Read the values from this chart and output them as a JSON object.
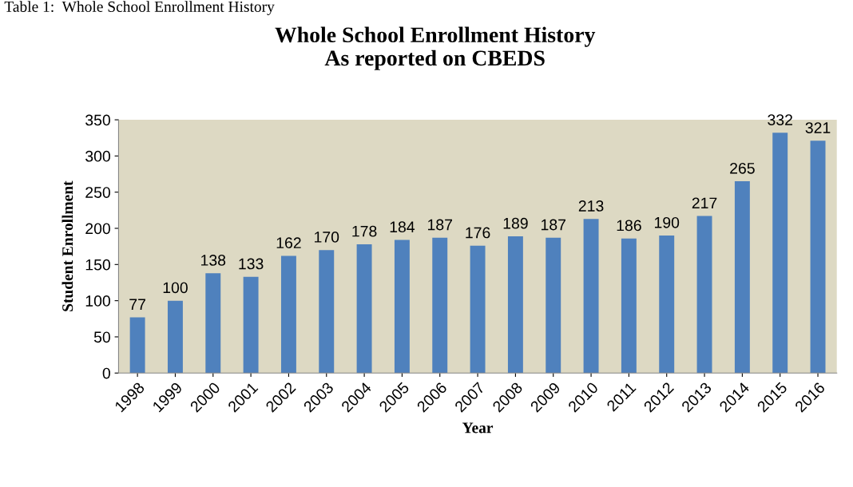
{
  "chart_data": {
    "type": "bar",
    "title": "Whole School Enrollment History\nAs reported on CBEDS",
    "xlabel": "Year",
    "ylabel": "Student Enrollment",
    "annotations": [
      "Table 1:  Whole School Enrollment History"
    ],
    "categories": [
      "1998",
      "1999",
      "2000",
      "2001",
      "2002",
      "2003",
      "2004",
      "2005",
      "2006",
      "2007",
      "2008",
      "2009",
      "2010",
      "2011",
      "2012",
      "2013",
      "2014",
      "2015",
      "2016"
    ],
    "values": [
      77,
      100,
      138,
      133,
      162,
      170,
      178,
      184,
      187,
      176,
      189,
      187,
      213,
      186,
      190,
      217,
      265,
      332,
      321
    ],
    "color": "#4f81bd",
    "ylim": [
      0,
      350
    ],
    "yticks": [
      0,
      50,
      100,
      150,
      200,
      250,
      300,
      350
    ],
    "grid": false,
    "data_labels": true
  }
}
